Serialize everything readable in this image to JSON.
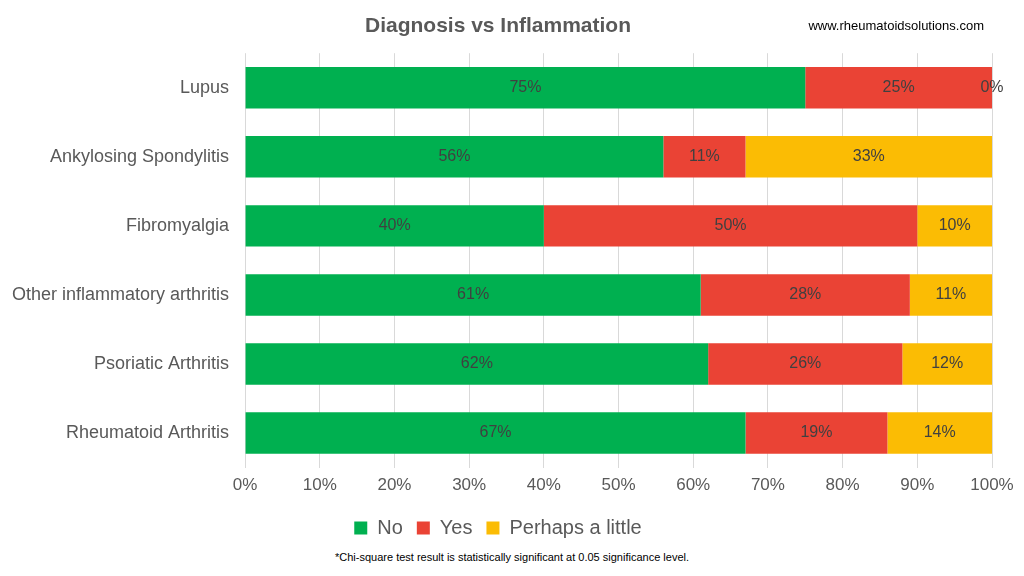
{
  "chart_data": {
    "type": "bar",
    "title": "Diagnosis vs Inflammation",
    "annotations": [
      "www.rheumatoidsolutions.com",
      "*Chi-square test result is statistically significant at 0.05 significance level."
    ],
    "orientation": "horizontal",
    "stacked": true,
    "data_labels": true,
    "grid": true,
    "legend": "bottom",
    "categories": [
      "Lupus",
      "Ankylosing Spondylitis",
      "Fibromyalgia",
      "Other inflammatory arthritis",
      "Psoriatic Arthritis",
      "Rheumatoid Arthritis"
    ],
    "series": [
      {
        "name": "No",
        "color": "#00b050",
        "values": [
          75,
          56,
          40,
          61,
          62,
          67
        ],
        "value_labels": [
          "75%",
          "56%",
          "40%",
          "61%",
          "62%",
          "67%"
        ]
      },
      {
        "name": "Yes",
        "color": "#ea4335",
        "values": [
          25,
          11,
          50,
          28,
          26,
          19
        ],
        "value_labels": [
          "25%",
          "11%",
          "50%",
          "28%",
          "26%",
          "19%"
        ]
      },
      {
        "name": "Perhaps a little",
        "color": "#fbbc04",
        "values": [
          0,
          33,
          10,
          11,
          12,
          14
        ],
        "value_labels": [
          "0%",
          "33%",
          "10%",
          "11%",
          "12%",
          "14%"
        ]
      }
    ],
    "xlim": [
      0,
      100
    ],
    "xticks": [
      {
        "value": 0,
        "label": "0%"
      },
      {
        "value": 10,
        "label": "10%"
      },
      {
        "value": 20,
        "label": "20%"
      },
      {
        "value": 30,
        "label": "30%"
      },
      {
        "value": 40,
        "label": "40%"
      },
      {
        "value": 50,
        "label": "50%"
      },
      {
        "value": 60,
        "label": "60%"
      },
      {
        "value": 70,
        "label": "70%"
      },
      {
        "value": 80,
        "label": "80%"
      },
      {
        "value": 90,
        "label": "90%"
      },
      {
        "value": 100,
        "label": "100%"
      }
    ]
  }
}
